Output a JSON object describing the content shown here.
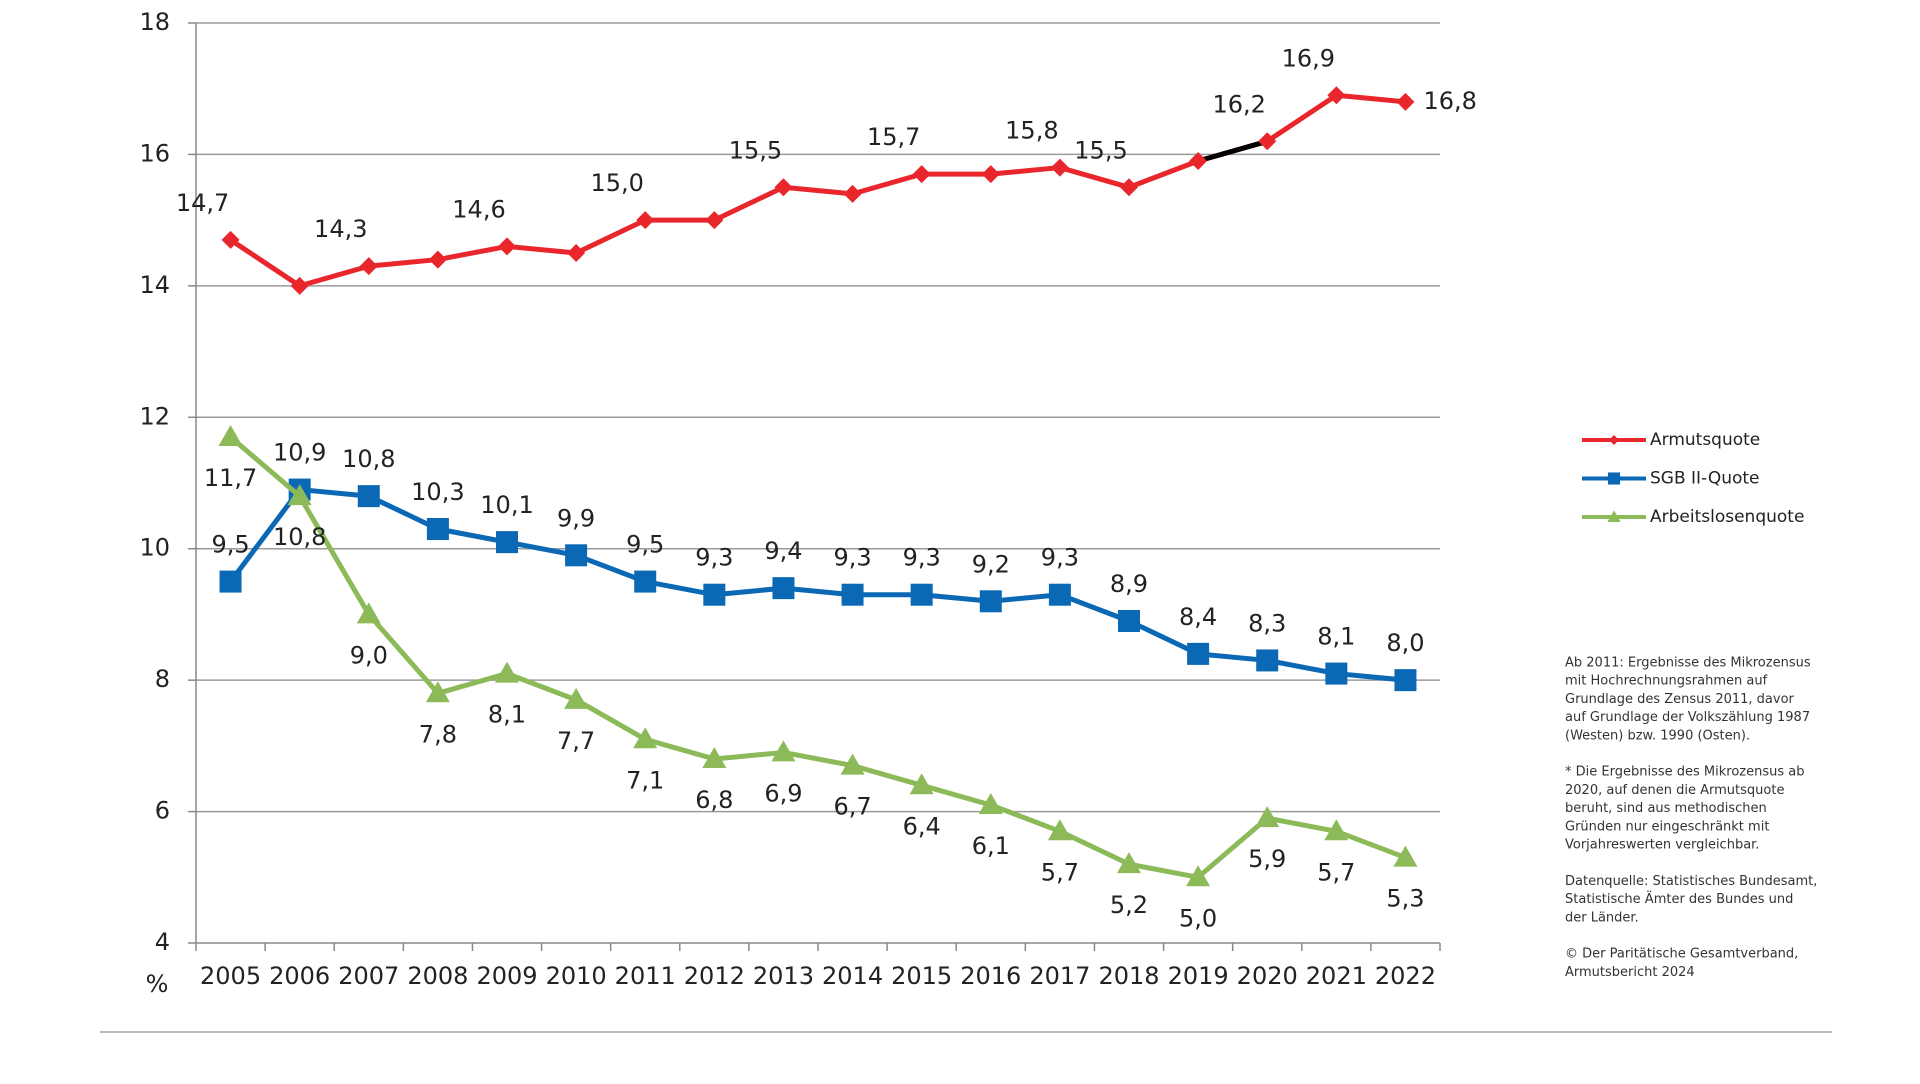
{
  "chart_data": {
    "type": "line",
    "y_label": "%",
    "categories": [
      "2005",
      "2006",
      "2007",
      "2008",
      "2009",
      "2010",
      "2011",
      "2012",
      "2013",
      "2014",
      "2015",
      "2016",
      "2017",
      "2018",
      "2019",
      "2020",
      "2021",
      "2022"
    ],
    "ylim": [
      4,
      18
    ],
    "yticks": [
      4,
      6,
      8,
      10,
      12,
      14,
      16,
      18
    ],
    "grid": true,
    "legend": "right",
    "series": [
      {
        "name": "Armutsquote",
        "color": "#e8262b",
        "marker": "diamond",
        "label_position": "above",
        "values": [
          14.7,
          14.0,
          14.3,
          14.4,
          14.6,
          14.5,
          15.0,
          15.0,
          15.5,
          15.4,
          15.7,
          15.7,
          15.8,
          15.5,
          15.9,
          16.2,
          16.9,
          16.8
        ],
        "value_labels": [
          "14,7",
          null,
          "14,3",
          null,
          "14,6",
          null,
          "15,0",
          null,
          "15,5",
          null,
          "15,7",
          null,
          "15,8",
          "15,5",
          null,
          "16,2",
          "16,9",
          "16,8"
        ],
        "black_segment": [
          "2019",
          "2020"
        ]
      },
      {
        "name": "SGB II-Quote",
        "color": "#0b68b4",
        "marker": "square",
        "label_position": "above",
        "values": [
          9.5,
          10.9,
          10.8,
          10.3,
          10.1,
          9.9,
          9.5,
          9.3,
          9.4,
          9.3,
          9.3,
          9.2,
          9.3,
          8.9,
          8.4,
          8.3,
          8.1,
          8.0
        ],
        "value_labels": [
          "9,5",
          "10,9",
          "10,8",
          "10,3",
          "10,1",
          "9,9",
          "9,5",
          "9,3",
          "9,4",
          "9,3",
          "9,3",
          "9,2",
          "9,3",
          "8,9",
          "8,4",
          "8,3",
          "8,1",
          "8,0"
        ]
      },
      {
        "name": "Arbeitslosenquote",
        "color": "#8cba59",
        "marker": "triangle",
        "label_position": "below",
        "values": [
          11.7,
          10.8,
          9.0,
          7.8,
          8.1,
          7.7,
          7.1,
          6.8,
          6.9,
          6.7,
          6.4,
          6.1,
          5.7,
          5.2,
          5.0,
          5.9,
          5.7,
          5.3
        ],
        "value_labels": [
          "11,7",
          "10,8",
          "9,0",
          "7,8",
          "8,1",
          "7,7",
          "7,1",
          "6,8",
          "6,9",
          "6,7",
          "6,4",
          "6,1",
          "5,7",
          "5,2",
          "5,0",
          "5,9",
          "5,7",
          "5,3"
        ]
      }
    ],
    "notes": [
      [
        "Ab 2011: Ergebnisse des Mikrozensus",
        "mit Hochrechnungsrahmen auf",
        "Grundlage des Zensus 2011, davor",
        "auf Grundlage der Volkszählung 1987",
        "(Westen) bzw. 1990 (Osten)."
      ],
      [
        "* Die Ergebnisse des Mikrozensus ab",
        "2020, auf denen die Armutsquote",
        "beruht, sind aus methodischen",
        "Gründen nur eingeschränkt mit",
        "Vorjahreswerten vergleichbar."
      ],
      [
        "Datenquelle: Statistisches Bundesamt,",
        "Statistische Ämter des Bundes und",
        "der Länder."
      ],
      [
        "© Der Paritätische Gesamtverband,",
        "Armutsbericht 2024"
      ]
    ]
  }
}
